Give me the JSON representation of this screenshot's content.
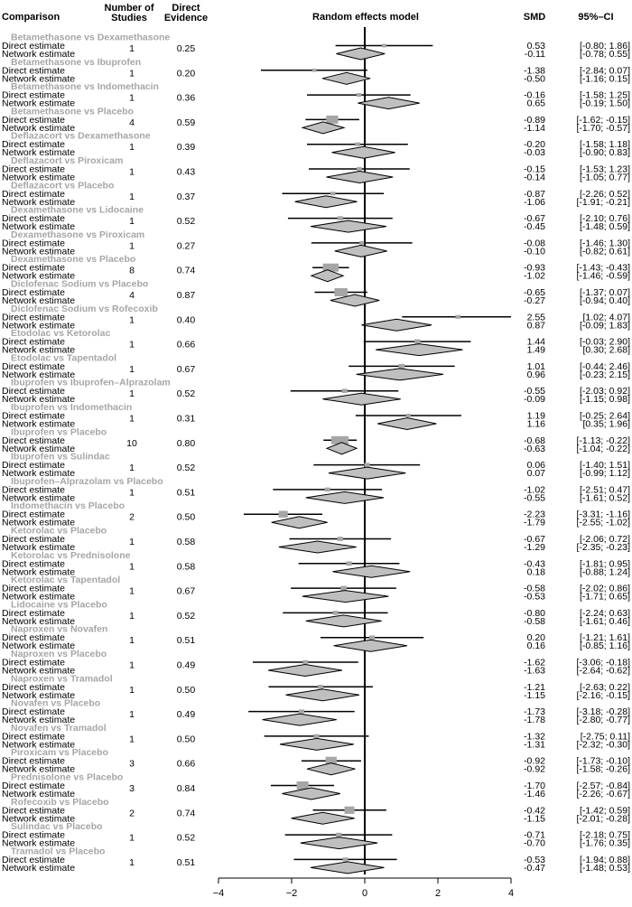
{
  "chart_data": {
    "type": "forest",
    "title": "Random effects model",
    "headers": {
      "comparison": "Comparison",
      "studies": [
        "Number of",
        "Studies"
      ],
      "evidence": [
        "Direct",
        "Evidence"
      ],
      "smd": "SMD",
      "ci": "95%–CI"
    },
    "row_labels": {
      "direct": "Direct estimate",
      "network": "Network estimate"
    },
    "xlim": [
      -4,
      4
    ],
    "x_ticks": [
      -4,
      -2,
      0,
      2,
      4
    ],
    "reference_line": 0,
    "colors": {
      "group_title": "#a6a6a6",
      "diamond": "#bfbfbf",
      "square": "#a6a6a6",
      "line": "#000000"
    },
    "comparisons": [
      {
        "name": "Betamethasone vs Dexamethasone",
        "studies": 1,
        "evidence": "0.25",
        "direct": {
          "smd": "0.53",
          "lo": "-0.80",
          "hi": "1.86"
        },
        "network": {
          "smd": "-0.11",
          "lo": "-0.78",
          "hi": "0.55"
        }
      },
      {
        "name": "Betamethasone vs Ibuprofen",
        "studies": 1,
        "evidence": "0.20",
        "direct": {
          "smd": "-1.38",
          "lo": "-2.84",
          "hi": "0.07"
        },
        "network": {
          "smd": "-0.50",
          "lo": "-1.16",
          "hi": "0.15"
        }
      },
      {
        "name": "Betamethasone vs Indomethacin",
        "studies": 1,
        "evidence": "0.36",
        "direct": {
          "smd": "-0.16",
          "lo": "-1.58",
          "hi": "1.25"
        },
        "network": {
          "smd": "0.65",
          "lo": "-0.19",
          "hi": "1.50"
        }
      },
      {
        "name": "Betamethasone vs Placebo",
        "studies": 4,
        "evidence": "0.59",
        "direct": {
          "smd": "-0.89",
          "lo": "-1.62",
          "hi": "-0.15"
        },
        "network": {
          "smd": "-1.14",
          "lo": "-1.70",
          "hi": "-0.57"
        }
      },
      {
        "name": "Deflazacort vs Dexamethasone",
        "studies": 1,
        "evidence": "0.39",
        "direct": {
          "smd": "-0.20",
          "lo": "-1.58",
          "hi": "1.18"
        },
        "network": {
          "smd": "-0.03",
          "lo": "-0.90",
          "hi": "0.83"
        }
      },
      {
        "name": "Deflazacort vs Piroxicam",
        "studies": 1,
        "evidence": "0.43",
        "direct": {
          "smd": "-0.15",
          "lo": "-1.53",
          "hi": "1.23"
        },
        "network": {
          "smd": "-0.14",
          "lo": "-1.05",
          "hi": "0.77"
        }
      },
      {
        "name": "Deflazacort vs Placebo",
        "studies": 1,
        "evidence": "0.37",
        "direct": {
          "smd": "-0.87",
          "lo": "-2.26",
          "hi": "0.52"
        },
        "network": {
          "smd": "-1.06",
          "lo": "-1.91",
          "hi": "-0.21"
        }
      },
      {
        "name": "Dexamethasone vs Lidocaine",
        "studies": 1,
        "evidence": "0.52",
        "direct": {
          "smd": "-0.67",
          "lo": "-2.10",
          "hi": "0.76"
        },
        "network": {
          "smd": "-0.45",
          "lo": "-1.48",
          "hi": "0.59"
        }
      },
      {
        "name": "Dexamethasone vs Piroxicam",
        "studies": 1,
        "evidence": "0.27",
        "direct": {
          "smd": "-0.08",
          "lo": "-1.46",
          "hi": "1.30"
        },
        "network": {
          "smd": "-0.10",
          "lo": "-0.82",
          "hi": "0.61"
        }
      },
      {
        "name": "Dexamethasone vs Placebo",
        "studies": 8,
        "evidence": "0.74",
        "direct": {
          "smd": "-0.93",
          "lo": "-1.43",
          "hi": "-0.43"
        },
        "network": {
          "smd": "-1.02",
          "lo": "-1.46",
          "hi": "-0.59"
        }
      },
      {
        "name": "Diclofenac Sodium vs Placebo",
        "studies": 4,
        "evidence": "0.87",
        "direct": {
          "smd": "-0.65",
          "lo": "-1.37",
          "hi": "0.07"
        },
        "network": {
          "smd": "-0.27",
          "lo": "-0.94",
          "hi": "0.40"
        }
      },
      {
        "name": "Diclofenac Sodium vs Rofecoxib",
        "studies": 1,
        "evidence": "0.40",
        "direct": {
          "smd": "2.55",
          "lo": "1.02",
          "hi": "4.07"
        },
        "network": {
          "smd": "0.87",
          "lo": "-0.09",
          "hi": "1.83"
        }
      },
      {
        "name": "Etodolac vs Ketorolac",
        "studies": 1,
        "evidence": "0.66",
        "direct": {
          "smd": "1.44",
          "lo": "-0.03",
          "hi": "2.90"
        },
        "network": {
          "smd": "1.49",
          "lo": "0.30",
          "hi": "2.68"
        }
      },
      {
        "name": "Etodolac vs Tapentadol",
        "studies": 1,
        "evidence": "0.67",
        "direct": {
          "smd": "1.01",
          "lo": "-0.44",
          "hi": "2.46"
        },
        "network": {
          "smd": "0.96",
          "lo": "-0.23",
          "hi": "2.15"
        }
      },
      {
        "name": "Ibuprofen vs Ibuprofen–Alprazolam",
        "studies": 1,
        "evidence": "0.52",
        "direct": {
          "smd": "-0.55",
          "lo": "-2.03",
          "hi": "0.92"
        },
        "network": {
          "smd": "-0.09",
          "lo": "-1.15",
          "hi": "0.98"
        }
      },
      {
        "name": "Ibuprofen vs Indomethacin",
        "studies": 1,
        "evidence": "0.31",
        "direct": {
          "smd": "1.19",
          "lo": "-0.25",
          "hi": "2.64"
        },
        "network": {
          "smd": "1.16",
          "lo": "0.35",
          "hi": "1.96"
        }
      },
      {
        "name": "Ibuprofen vs Placebo",
        "studies": 10,
        "evidence": "0.80",
        "direct": {
          "smd": "-0.68",
          "lo": "-1.13",
          "hi": "-0.22"
        },
        "network": {
          "smd": "-0.63",
          "lo": "-1.04",
          "hi": "-0.22"
        }
      },
      {
        "name": "Ibuprofen vs Sulindac",
        "studies": 1,
        "evidence": "0.52",
        "direct": {
          "smd": "0.06",
          "lo": "-1.40",
          "hi": "1.51"
        },
        "network": {
          "smd": "0.07",
          "lo": "-0.99",
          "hi": "1.12"
        }
      },
      {
        "name": "Ibuprofen–Alprazolam vs Placebo",
        "studies": 1,
        "evidence": "0.51",
        "direct": {
          "smd": "-1.02",
          "lo": "-2.51",
          "hi": "0.47"
        },
        "network": {
          "smd": "-0.55",
          "lo": "-1.61",
          "hi": "0.52"
        }
      },
      {
        "name": "Indomethacin vs Placebo",
        "studies": 2,
        "evidence": "0.50",
        "direct": {
          "smd": "-2.23",
          "lo": "-3.31",
          "hi": "-1.16"
        },
        "network": {
          "smd": "-1.79",
          "lo": "-2.55",
          "hi": "-1.02"
        }
      },
      {
        "name": "Ketorolac vs Placebo",
        "studies": 1,
        "evidence": "0.58",
        "direct": {
          "smd": "-0.67",
          "lo": "-2.06",
          "hi": "0.72"
        },
        "network": {
          "smd": "-1.29",
          "lo": "-2.35",
          "hi": "-0.23"
        }
      },
      {
        "name": "Ketorolac vs Prednisolone",
        "studies": 1,
        "evidence": "0.58",
        "direct": {
          "smd": "-0.43",
          "lo": "-1.81",
          "hi": "0.95"
        },
        "network": {
          "smd": "0.18",
          "lo": "-0.88",
          "hi": "1.24"
        }
      },
      {
        "name": "Ketorolac vs Tapentadol",
        "studies": 1,
        "evidence": "0.67",
        "direct": {
          "smd": "-0.58",
          "lo": "-2.02",
          "hi": "0.86"
        },
        "network": {
          "smd": "-0.53",
          "lo": "-1.71",
          "hi": "0.65"
        }
      },
      {
        "name": "Lidocaine vs Placebo",
        "studies": 1,
        "evidence": "0.52",
        "direct": {
          "smd": "-0.80",
          "lo": "-2.24",
          "hi": "0.63"
        },
        "network": {
          "smd": "-0.58",
          "lo": "-1.61",
          "hi": "0.46"
        }
      },
      {
        "name": "Naproxen vs Novafen",
        "studies": 1,
        "evidence": "0.51",
        "direct": {
          "smd": "0.20",
          "lo": "-1.21",
          "hi": "1.61"
        },
        "network": {
          "smd": "0.16",
          "lo": "-0.85",
          "hi": "1.16"
        }
      },
      {
        "name": "Naproxen vs Placebo",
        "studies": 1,
        "evidence": "0.49",
        "direct": {
          "smd": "-1.62",
          "lo": "-3.06",
          "hi": "-0.18"
        },
        "network": {
          "smd": "-1.63",
          "lo": "-2.64",
          "hi": "-0.62"
        }
      },
      {
        "name": "Naproxen vs Tramadol",
        "studies": 1,
        "evidence": "0.50",
        "direct": {
          "smd": "-1.21",
          "lo": "-2.63",
          "hi": "0.22"
        },
        "network": {
          "smd": "-1.15",
          "lo": "-2.16",
          "hi": "-0.15"
        }
      },
      {
        "name": "Novafen vs Placebo",
        "studies": 1,
        "evidence": "0.49",
        "direct": {
          "smd": "-1.73",
          "lo": "-3.18",
          "hi": "-0.28"
        },
        "network": {
          "smd": "-1.78",
          "lo": "-2.80",
          "hi": "-0.77"
        }
      },
      {
        "name": "Novafen vs Tramadol",
        "studies": 1,
        "evidence": "0.50",
        "direct": {
          "smd": "-1.32",
          "lo": "-2.75",
          "hi": "0.11"
        },
        "network": {
          "smd": "-1.31",
          "lo": "-2.32",
          "hi": "-0.30"
        }
      },
      {
        "name": "Piroxicam vs Placebo",
        "studies": 3,
        "evidence": "0.66",
        "direct": {
          "smd": "-0.92",
          "lo": "-1.73",
          "hi": "-0.10"
        },
        "network": {
          "smd": "-0.92",
          "lo": "-1.58",
          "hi": "-0.26"
        }
      },
      {
        "name": "Prednisolone vs Placebo",
        "studies": 3,
        "evidence": "0.84",
        "direct": {
          "smd": "-1.70",
          "lo": "-2.57",
          "hi": "-0.84"
        },
        "network": {
          "smd": "-1.46",
          "lo": "-2.26",
          "hi": "-0.67"
        }
      },
      {
        "name": "Rofecoxib vs Placebo",
        "studies": 2,
        "evidence": "0.74",
        "direct": {
          "smd": "-0.42",
          "lo": "-1.42",
          "hi": "0.59"
        },
        "network": {
          "smd": "-1.15",
          "lo": "-2.01",
          "hi": "-0.28"
        }
      },
      {
        "name": "Sulindac vs Placebo",
        "studies": 1,
        "evidence": "0.52",
        "direct": {
          "smd": "-0.71",
          "lo": "-2.18",
          "hi": "0.75"
        },
        "network": {
          "smd": "-0.70",
          "lo": "-1.76",
          "hi": "0.35"
        }
      },
      {
        "name": "Tramadol vs Placebo",
        "studies": 1,
        "evidence": "0.51",
        "direct": {
          "smd": "-0.53",
          "lo": "-1.94",
          "hi": "0.88"
        },
        "network": {
          "smd": "-0.47",
          "lo": "-1.48",
          "hi": "0.53"
        }
      }
    ]
  }
}
